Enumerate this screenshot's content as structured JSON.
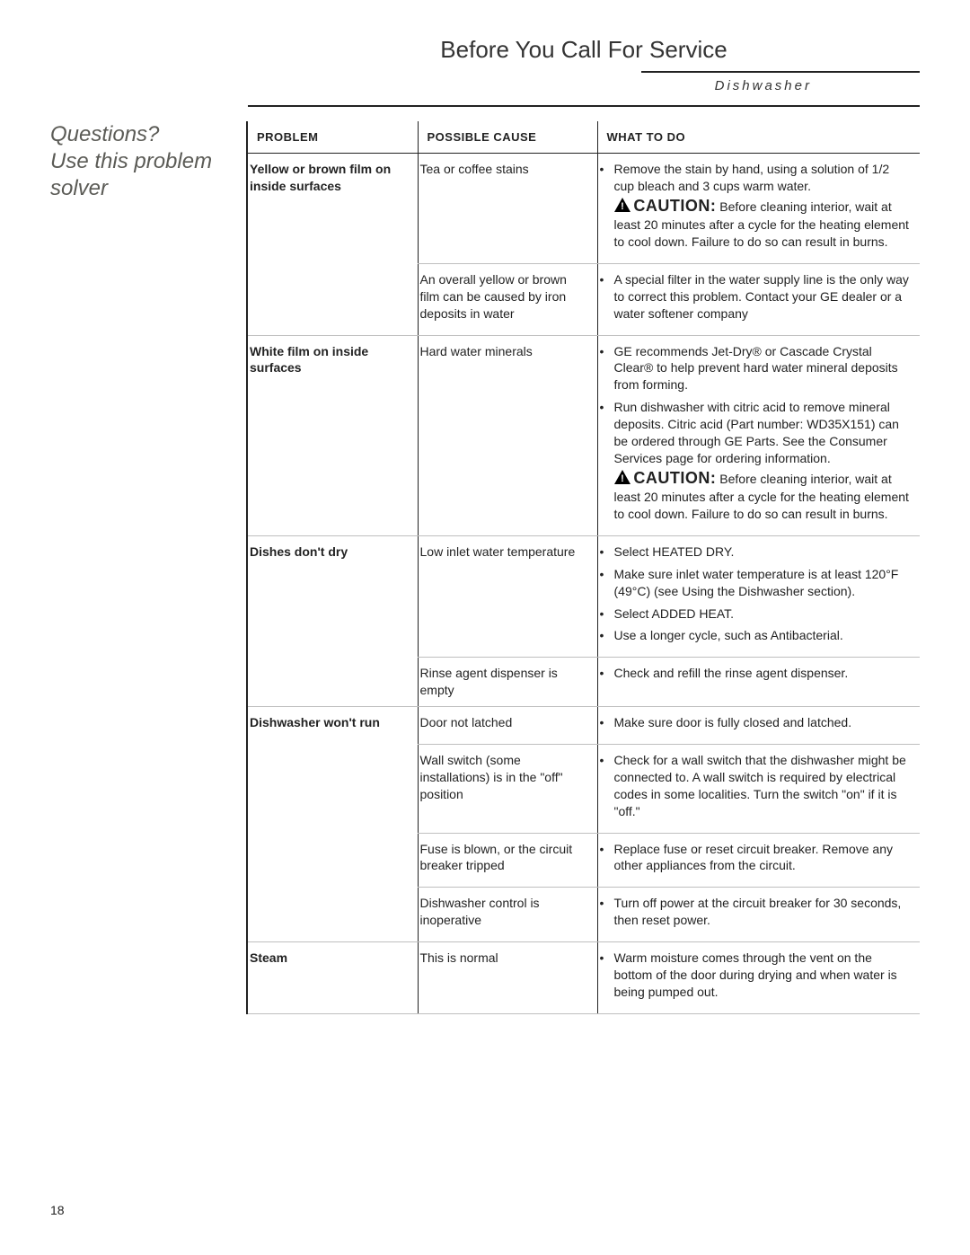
{
  "page": {
    "title": "Before You Call For Service",
    "subtitle": "Dishwasher",
    "page_number": "18"
  },
  "sidebar": {
    "heading_line1": "Questions?",
    "heading_line2": "Use this problem solver"
  },
  "columns": {
    "problem": "PROBLEM",
    "cause": "POSSIBLE CAUSE",
    "todo": "WHAT TO DO"
  },
  "caution_label": "CAUTION:",
  "rows": [
    {
      "problem": "Yellow or brown film on inside surfaces",
      "causes": [
        {
          "cause": "Tea or coffee stains",
          "bullets": [
            {
              "pre": "Remove the stain by hand, using a solution of 1/2 cup bleach and 3 cups warm water.",
              "caution": true,
              "post": "Before cleaning interior, wait at least 20 minutes after a cycle for the heating element to cool down. Failure to do so can result in burns."
            }
          ]
        },
        {
          "cause": "An overall yellow or brown film can be caused by iron deposits in water",
          "bullets": [
            {
              "pre": "A special filter in the water supply line is the only way to correct this problem. Contact your GE dealer or a water softener company"
            }
          ]
        }
      ]
    },
    {
      "problem": "White film on inside surfaces",
      "causes": [
        {
          "cause": "Hard water minerals",
          "bullets": [
            {
              "pre": "GE recommends Jet-Dry® or Cascade Crystal Clear® to help prevent hard water mineral deposits from forming."
            },
            {
              "pre": "Run dishwasher with citric acid to remove mineral deposits. Citric acid (Part number: WD35X151) can be ordered through GE Parts. See the Consumer Services page for ordering information.",
              "caution": true,
              "post": "Before cleaning interior, wait at least 20 minutes after a cycle for the heating element to cool down. Failure to do so can result in burns."
            }
          ]
        }
      ]
    },
    {
      "problem": "Dishes don't dry",
      "causes": [
        {
          "cause": "Low inlet water temperature",
          "bullets": [
            {
              "pre": "Select HEATED DRY."
            },
            {
              "pre": "Make sure inlet water temperature is at least 120°F (49°C) (see Using the Dishwasher section)."
            },
            {
              "pre": "Select ADDED HEAT."
            },
            {
              "pre": "Use a longer cycle, such as Antibacterial."
            }
          ]
        },
        {
          "cause": "Rinse agent dispenser is empty",
          "bullets": [
            {
              "pre": "Check and refill the rinse agent dispenser."
            }
          ]
        }
      ]
    },
    {
      "problem": "Dishwasher won't run",
      "causes": [
        {
          "cause": "Door not latched",
          "sep": false,
          "bullets": [
            {
              "pre": "Make sure door is fully closed and latched."
            }
          ]
        },
        {
          "cause": "Wall switch (some installations) is in the \"off\" position",
          "sep": false,
          "bullets": [
            {
              "pre": "Check for a wall switch that the dishwasher might be connected to. A wall switch is required by electrical codes in some localities. Turn the switch \"on\" if it is \"off.\""
            }
          ]
        },
        {
          "cause": "Fuse is blown, or the circuit breaker tripped",
          "sep": false,
          "bullets": [
            {
              "pre": "Replace fuse or reset circuit breaker. Remove any other appliances from the circuit."
            }
          ]
        },
        {
          "cause": "Dishwasher control is inoperative",
          "bullets": [
            {
              "pre": "Turn off power at the circuit breaker for 30 seconds, then reset power."
            }
          ]
        }
      ]
    },
    {
      "problem": "Steam",
      "causes": [
        {
          "cause": "This is normal",
          "last": true,
          "bullets": [
            {
              "pre": "Warm moisture comes through the vent on the bottom of the door during drying and when water is being pumped out."
            }
          ]
        }
      ]
    }
  ]
}
